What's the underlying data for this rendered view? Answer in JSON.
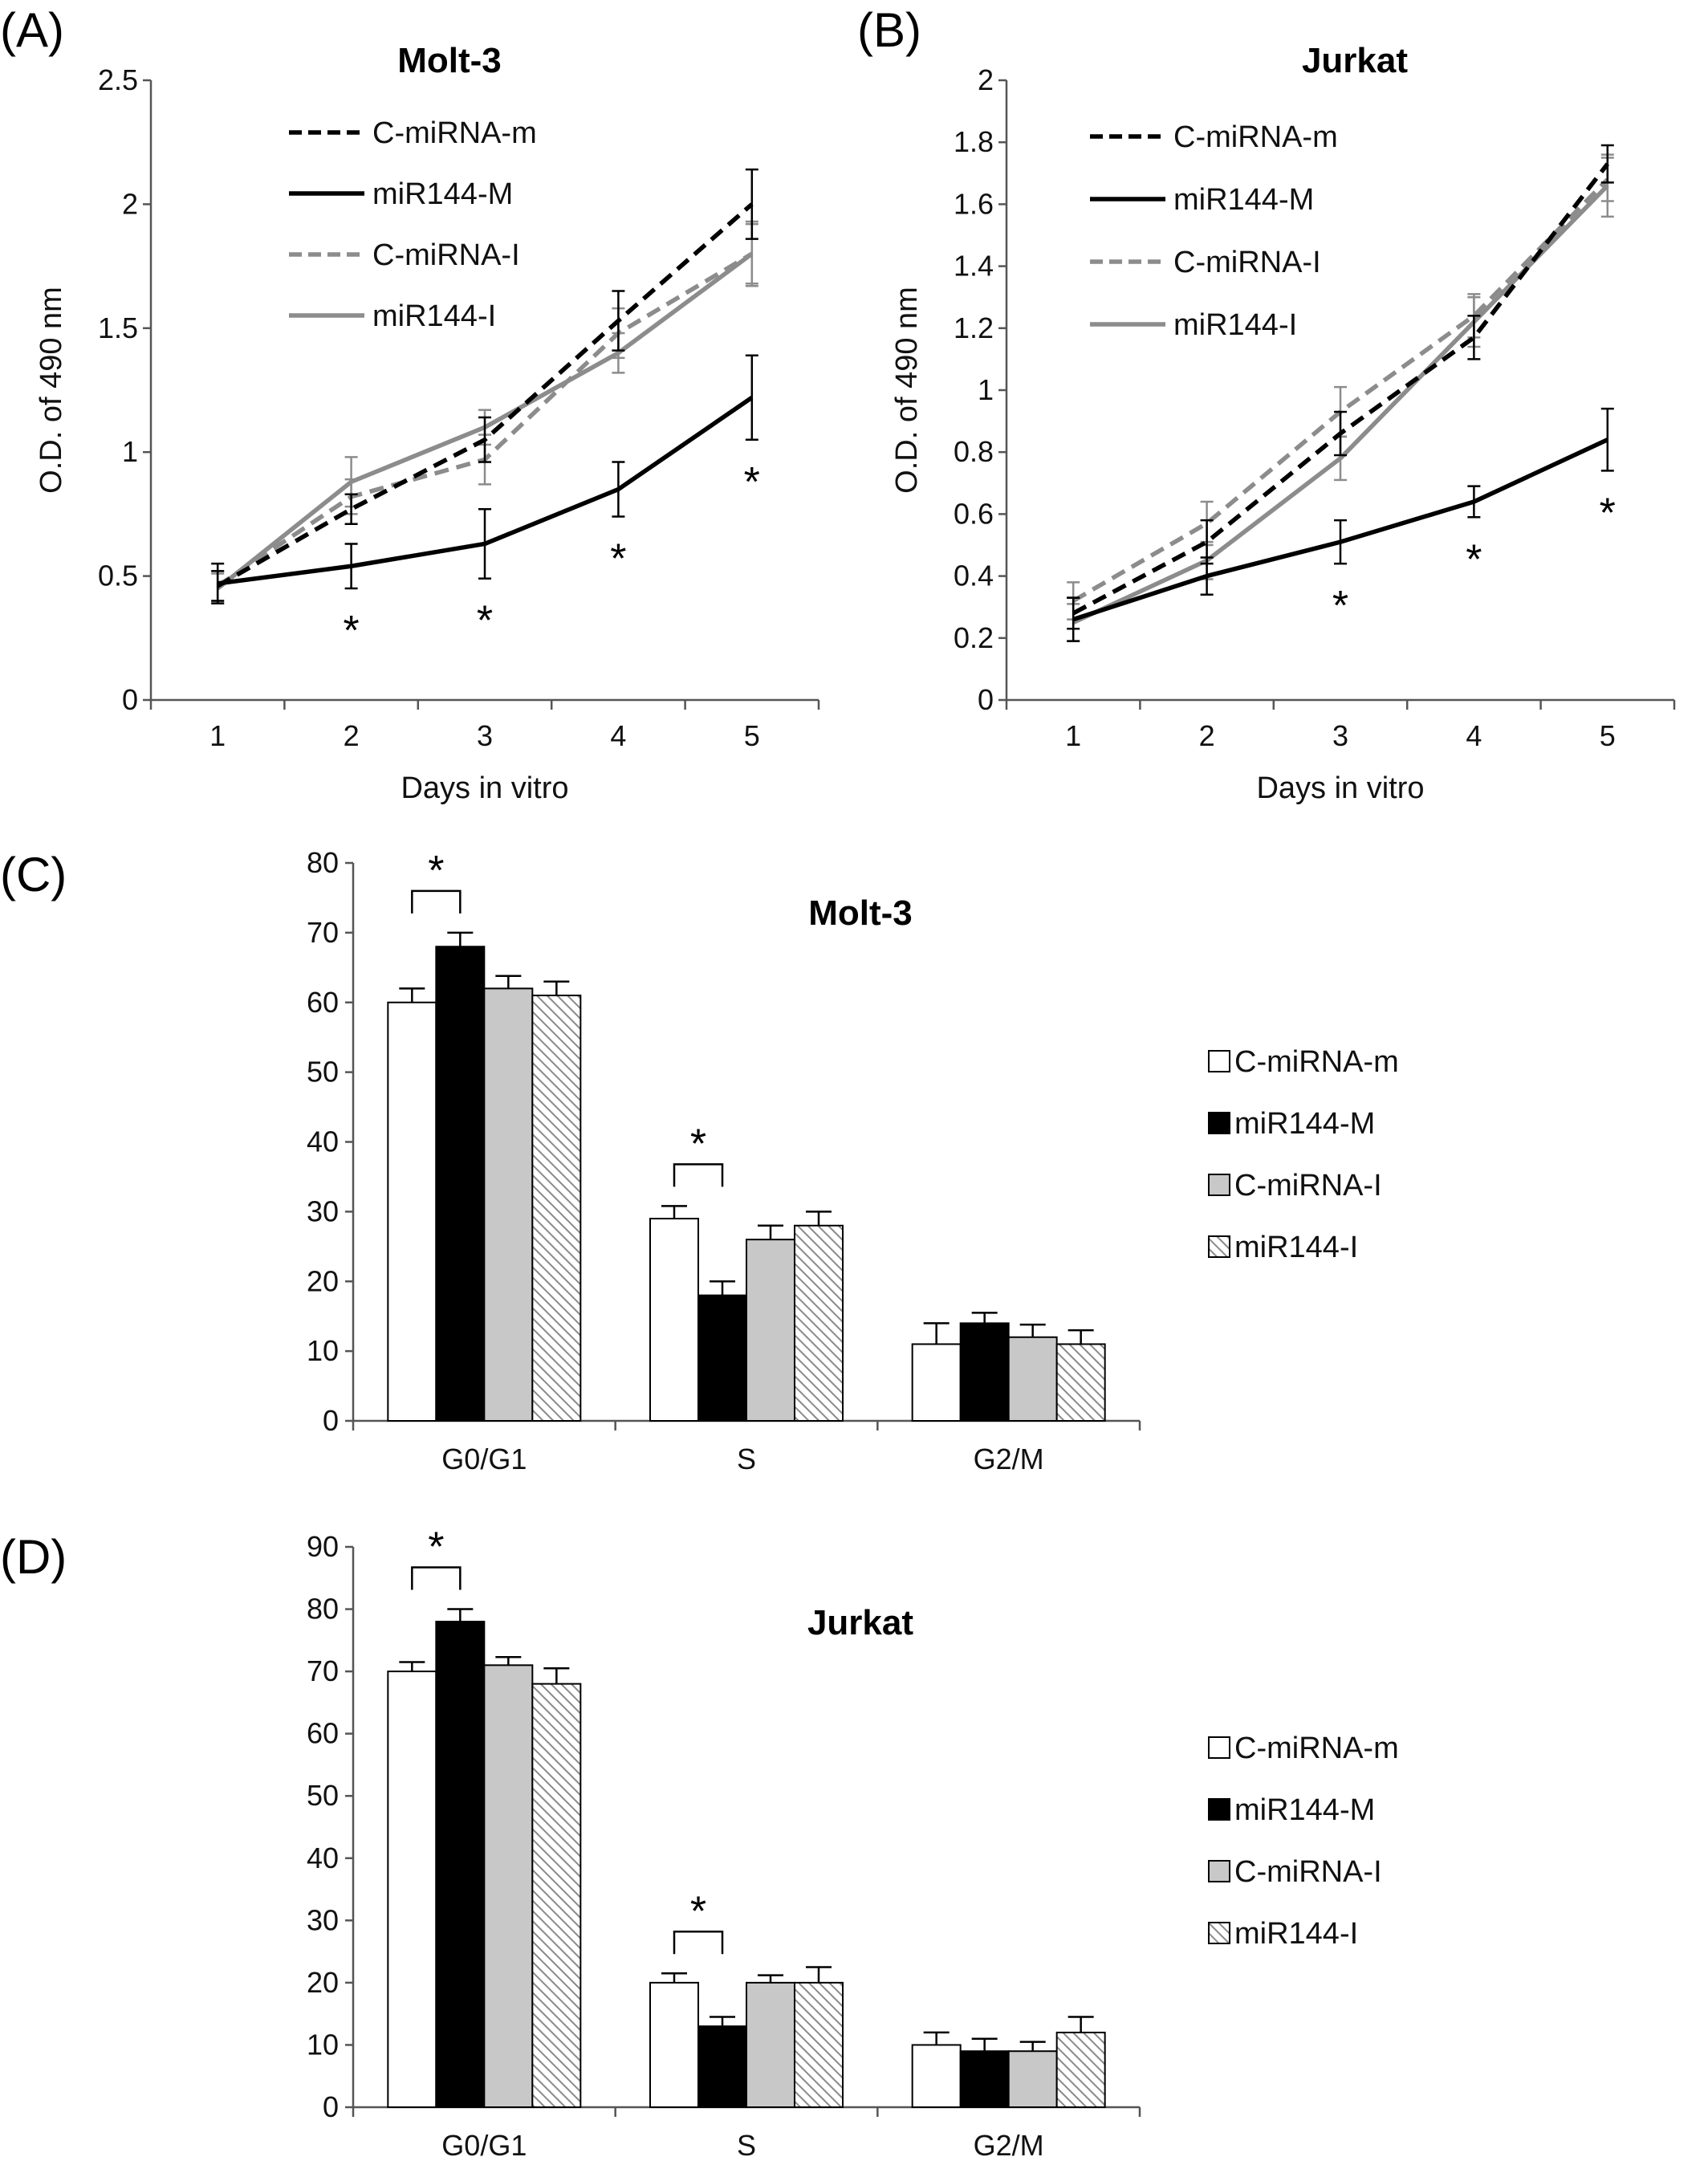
{
  "chart_data": [
    {
      "panel": "(A)",
      "type": "line",
      "title": "Molt-3",
      "xlabel": "Days in vitro",
      "ylabel": "O.D. of 490 nm",
      "categories": [
        "1",
        "2",
        "3",
        "4",
        "5"
      ],
      "ylim": [
        0,
        2.5
      ],
      "yticks": [
        "0",
        "0.5",
        "1",
        "1.5",
        "2",
        "2.5"
      ],
      "grid": false,
      "legend_position": "top-left",
      "series": [
        {
          "name": "C-miRNA-m",
          "style": "dashed",
          "color": "#000000",
          "values": [
            0.46,
            0.77,
            1.05,
            1.53,
            2.0
          ],
          "errors": [
            0.06,
            0.06,
            0.09,
            0.12,
            0.14
          ]
        },
        {
          "name": "miR144-M",
          "style": "solid",
          "color": "#000000",
          "values": [
            0.47,
            0.54,
            0.63,
            0.85,
            1.22
          ],
          "errors": [
            0.08,
            0.09,
            0.14,
            0.11,
            0.17
          ]
        },
        {
          "name": "C-miRNA-I",
          "style": "dashed",
          "color": "#8c8c8c",
          "values": [
            0.46,
            0.82,
            0.97,
            1.48,
            1.8
          ],
          "errors": [
            0.06,
            0.07,
            0.1,
            0.1,
            0.13
          ]
        },
        {
          "name": "miR144-I",
          "style": "solid",
          "color": "#8c8c8c",
          "values": [
            0.45,
            0.88,
            1.1,
            1.4,
            1.8
          ],
          "errors": [
            0.06,
            0.1,
            0.07,
            0.08,
            0.12
          ]
        }
      ],
      "significance": [
        "",
        "*",
        "*",
        "*",
        "*"
      ]
    },
    {
      "panel": "(B)",
      "type": "line",
      "title": "Jurkat",
      "xlabel": "Days in vitro",
      "ylabel": "O.D. of 490 nm",
      "categories": [
        "1",
        "2",
        "3",
        "4",
        "5"
      ],
      "ylim": [
        0,
        2
      ],
      "yticks": [
        "0",
        "0.2",
        "0.4",
        "0.6",
        "0.8",
        "1",
        "1.2",
        "1.4",
        "1.6",
        "1.8",
        "2"
      ],
      "grid": false,
      "legend_position": "top-left",
      "series": [
        {
          "name": "C-miRNA-m",
          "style": "dashed",
          "color": "#000000",
          "values": [
            0.28,
            0.51,
            0.86,
            1.17,
            1.73
          ],
          "errors": [
            0.05,
            0.07,
            0.07,
            0.07,
            0.06
          ]
        },
        {
          "name": "miR144-M",
          "style": "solid",
          "color": "#000000",
          "values": [
            0.26,
            0.4,
            0.51,
            0.64,
            0.84
          ],
          "errors": [
            0.07,
            0.06,
            0.07,
            0.05,
            0.1
          ]
        },
        {
          "name": "C-miRNA-I",
          "style": "dashed",
          "color": "#8c8c8c",
          "values": [
            0.32,
            0.57,
            0.93,
            1.24,
            1.68
          ],
          "errors": [
            0.06,
            0.07,
            0.08,
            0.07,
            0.07
          ]
        },
        {
          "name": "miR144-I",
          "style": "solid",
          "color": "#8c8c8c",
          "values": [
            0.25,
            0.45,
            0.78,
            1.22,
            1.66
          ],
          "errors": [
            0.06,
            0.06,
            0.07,
            0.08,
            0.1
          ]
        }
      ],
      "significance": [
        "",
        "",
        "*",
        "*",
        "*"
      ]
    },
    {
      "panel": "(C)",
      "type": "bar",
      "title": "Molt-3",
      "categories": [
        "G0/G1",
        "S",
        "G2/M"
      ],
      "ylim": [
        0,
        80
      ],
      "yticks": [
        "0",
        "10",
        "20",
        "30",
        "40",
        "50",
        "60",
        "70",
        "80"
      ],
      "legend_position": "right",
      "series": [
        {
          "name": "C-miRNA-m",
          "fill": "white",
          "values": [
            60,
            29,
            11
          ],
          "errors": [
            2,
            1.8,
            3
          ]
        },
        {
          "name": "miR144-M",
          "fill": "black",
          "values": [
            68,
            18,
            14
          ],
          "errors": [
            2,
            2,
            1.5
          ]
        },
        {
          "name": "C-miRNA-I",
          "fill": "gray",
          "values": [
            62,
            26,
            12
          ],
          "errors": [
            1.8,
            2,
            1.8
          ]
        },
        {
          "name": "miR144-I",
          "fill": "hatched",
          "values": [
            61,
            28,
            11
          ],
          "errors": [
            2,
            2,
            2
          ]
        }
      ],
      "brackets": [
        {
          "category": "G0/G1",
          "label": "*"
        },
        {
          "category": "S",
          "label": "*"
        }
      ]
    },
    {
      "panel": "(D)",
      "type": "bar",
      "title": "Jurkat",
      "categories": [
        "G0/G1",
        "S",
        "G2/M"
      ],
      "ylim": [
        0,
        90
      ],
      "yticks": [
        "0",
        "10",
        "20",
        "30",
        "40",
        "50",
        "60",
        "70",
        "80",
        "90"
      ],
      "legend_position": "right",
      "series": [
        {
          "name": "C-miRNA-m",
          "fill": "white",
          "values": [
            70,
            20,
            10
          ],
          "errors": [
            1.5,
            1.5,
            2
          ]
        },
        {
          "name": "miR144-M",
          "fill": "black",
          "values": [
            78,
            13,
            9
          ],
          "errors": [
            2,
            1.5,
            2
          ]
        },
        {
          "name": "C-miRNA-I",
          "fill": "gray",
          "values": [
            71,
            20,
            9
          ],
          "errors": [
            1.3,
            1.2,
            1.5
          ]
        },
        {
          "name": "miR144-I",
          "fill": "hatched",
          "values": [
            68,
            20,
            12
          ],
          "errors": [
            2.5,
            2.5,
            2.5
          ]
        }
      ],
      "brackets": [
        {
          "category": "G0/G1",
          "label": "*"
        },
        {
          "category": "S",
          "label": "*"
        }
      ]
    }
  ]
}
